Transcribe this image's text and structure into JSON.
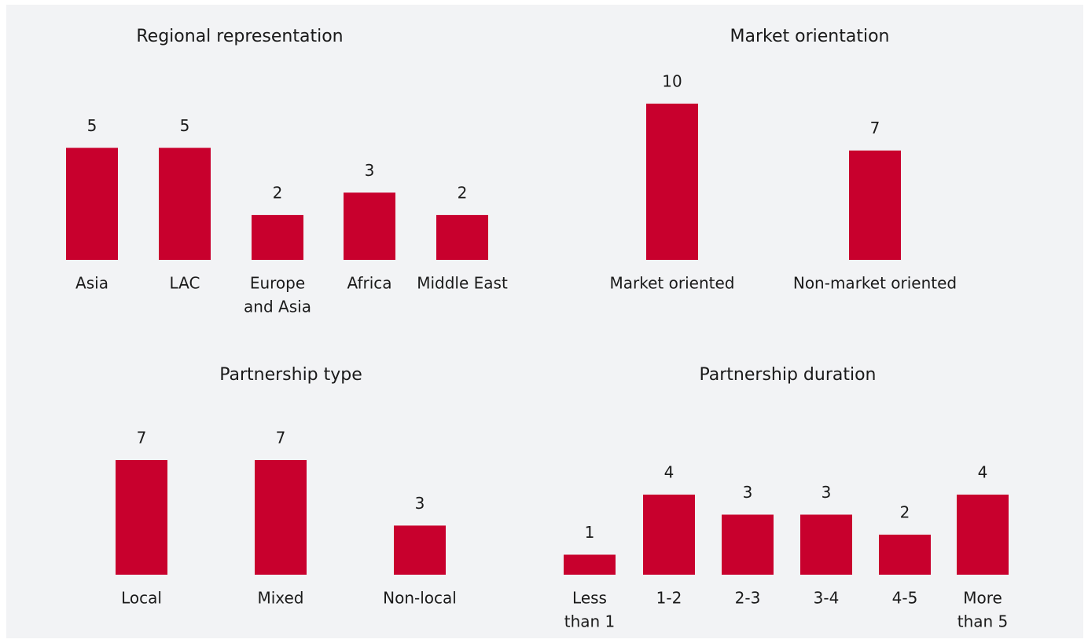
{
  "chart_data": [
    {
      "type": "bar",
      "title": "Regional representation",
      "color": "#c8002d",
      "ylim": [
        0,
        5.5
      ],
      "categories": [
        "Asia",
        "LAC",
        [
          "Europe",
          "and Asia"
        ],
        "Africa",
        "Middle East"
      ],
      "values": [
        5,
        5,
        2,
        3,
        2
      ]
    },
    {
      "type": "bar",
      "title": "Market orientation",
      "color": "#c8002d",
      "ylim": [
        0,
        10
      ],
      "categories": [
        "Market oriented",
        "Non-market oriented"
      ],
      "values": [
        10,
        7
      ]
    },
    {
      "type": "bar",
      "title": "Partnership type",
      "color": "#c8002d",
      "ylim": [
        0,
        7
      ],
      "categories": [
        "Local",
        "Mixed",
        "Non-local"
      ],
      "values": [
        7,
        7,
        3
      ]
    },
    {
      "type": "bar",
      "title": "Partnership duration",
      "color": "#c8002d",
      "ylim": [
        0,
        4
      ],
      "categories": [
        [
          "Less",
          "than 1"
        ],
        "1-2",
        "2-3",
        "3-4",
        "4-5",
        [
          "More",
          "than 5"
        ]
      ],
      "values": [
        1,
        4,
        3,
        3,
        2,
        4
      ]
    }
  ]
}
